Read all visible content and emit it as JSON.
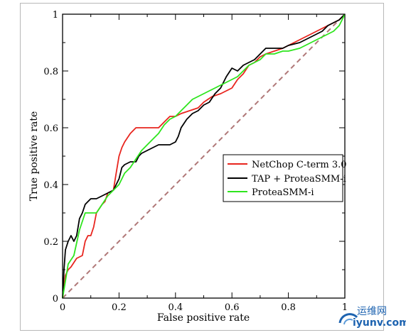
{
  "chart_data": {
    "type": "line",
    "xlabel": "False positive rate",
    "ylabel": "True positive rate",
    "xlim": [
      0,
      1
    ],
    "ylim": [
      0,
      1
    ],
    "x_ticks": [
      "0",
      "0.2",
      "0.4",
      "0.6",
      "0.8",
      "1"
    ],
    "y_ticks": [
      "0",
      "0.2",
      "0.4",
      "0.6",
      "0.8",
      "1"
    ],
    "grid": false,
    "legend_position": "right-middle",
    "diagonal": {
      "x": [
        0,
        1
      ],
      "y": [
        0,
        1
      ],
      "color": "#b07878",
      "style": "dashed"
    },
    "series": [
      {
        "name": "NetChop C-term 3.0",
        "color": "#e8251e",
        "x": [
          0,
          0.01,
          0.02,
          0.03,
          0.05,
          0.07,
          0.08,
          0.09,
          0.1,
          0.11,
          0.12,
          0.14,
          0.15,
          0.16,
          0.18,
          0.19,
          0.2,
          0.21,
          0.22,
          0.24,
          0.26,
          0.28,
          0.32,
          0.34,
          0.36,
          0.38,
          0.4,
          0.42,
          0.45,
          0.48,
          0.5,
          0.53,
          0.56,
          0.58,
          0.6,
          0.62,
          0.64,
          0.66,
          0.68,
          0.7,
          0.72,
          0.75,
          0.78,
          0.8,
          0.84,
          0.88,
          0.92,
          0.96,
          0.98,
          1
        ],
        "y": [
          0,
          0.08,
          0.1,
          0.11,
          0.14,
          0.15,
          0.2,
          0.22,
          0.22,
          0.25,
          0.3,
          0.33,
          0.34,
          0.37,
          0.38,
          0.44,
          0.5,
          0.53,
          0.55,
          0.58,
          0.6,
          0.6,
          0.6,
          0.6,
          0.62,
          0.64,
          0.64,
          0.65,
          0.66,
          0.67,
          0.69,
          0.71,
          0.72,
          0.73,
          0.74,
          0.77,
          0.79,
          0.82,
          0.83,
          0.85,
          0.86,
          0.87,
          0.88,
          0.89,
          0.91,
          0.93,
          0.95,
          0.97,
          0.98,
          1
        ]
      },
      {
        "name": "TAP + ProteaSMM-i",
        "color": "#000000",
        "x": [
          0,
          0.005,
          0.01,
          0.02,
          0.03,
          0.04,
          0.05,
          0.06,
          0.07,
          0.08,
          0.09,
          0.1,
          0.12,
          0.14,
          0.16,
          0.18,
          0.2,
          0.21,
          0.22,
          0.24,
          0.26,
          0.27,
          0.28,
          0.3,
          0.32,
          0.34,
          0.36,
          0.38,
          0.4,
          0.41,
          0.42,
          0.44,
          0.46,
          0.48,
          0.5,
          0.52,
          0.54,
          0.56,
          0.58,
          0.6,
          0.62,
          0.64,
          0.66,
          0.68,
          0.7,
          0.72,
          0.75,
          0.78,
          0.8,
          0.84,
          0.88,
          0.92,
          0.94,
          0.96,
          0.98,
          1
        ],
        "y": [
          0,
          0.1,
          0.17,
          0.2,
          0.22,
          0.2,
          0.22,
          0.28,
          0.3,
          0.33,
          0.34,
          0.35,
          0.35,
          0.36,
          0.37,
          0.38,
          0.42,
          0.46,
          0.47,
          0.48,
          0.48,
          0.5,
          0.51,
          0.52,
          0.53,
          0.54,
          0.54,
          0.54,
          0.55,
          0.57,
          0.6,
          0.63,
          0.65,
          0.66,
          0.68,
          0.69,
          0.72,
          0.74,
          0.78,
          0.81,
          0.8,
          0.82,
          0.83,
          0.84,
          0.86,
          0.88,
          0.88,
          0.88,
          0.89,
          0.9,
          0.92,
          0.94,
          0.96,
          0.97,
          0.98,
          1
        ]
      },
      {
        "name": "ProteaSMM-i",
        "color": "#2ee51e",
        "x": [
          0,
          0.01,
          0.02,
          0.04,
          0.06,
          0.08,
          0.1,
          0.12,
          0.14,
          0.16,
          0.18,
          0.2,
          0.22,
          0.24,
          0.26,
          0.28,
          0.3,
          0.32,
          0.34,
          0.36,
          0.38,
          0.4,
          0.42,
          0.44,
          0.46,
          0.48,
          0.5,
          0.52,
          0.54,
          0.56,
          0.58,
          0.6,
          0.62,
          0.64,
          0.66,
          0.68,
          0.7,
          0.72,
          0.75,
          0.78,
          0.8,
          0.84,
          0.88,
          0.9,
          0.92,
          0.94,
          0.96,
          0.98,
          1
        ],
        "y": [
          0,
          0.06,
          0.12,
          0.15,
          0.24,
          0.3,
          0.3,
          0.3,
          0.33,
          0.36,
          0.38,
          0.4,
          0.44,
          0.46,
          0.49,
          0.52,
          0.54,
          0.56,
          0.58,
          0.61,
          0.63,
          0.64,
          0.66,
          0.68,
          0.7,
          0.71,
          0.72,
          0.73,
          0.74,
          0.75,
          0.76,
          0.77,
          0.78,
          0.8,
          0.82,
          0.83,
          0.84,
          0.86,
          0.86,
          0.87,
          0.87,
          0.88,
          0.9,
          0.91,
          0.92,
          0.93,
          0.94,
          0.96,
          1
        ]
      }
    ]
  },
  "watermark": {
    "top_text": "运维网",
    "bottom_text": "iyunv.com",
    "color": "#1d63b0"
  }
}
